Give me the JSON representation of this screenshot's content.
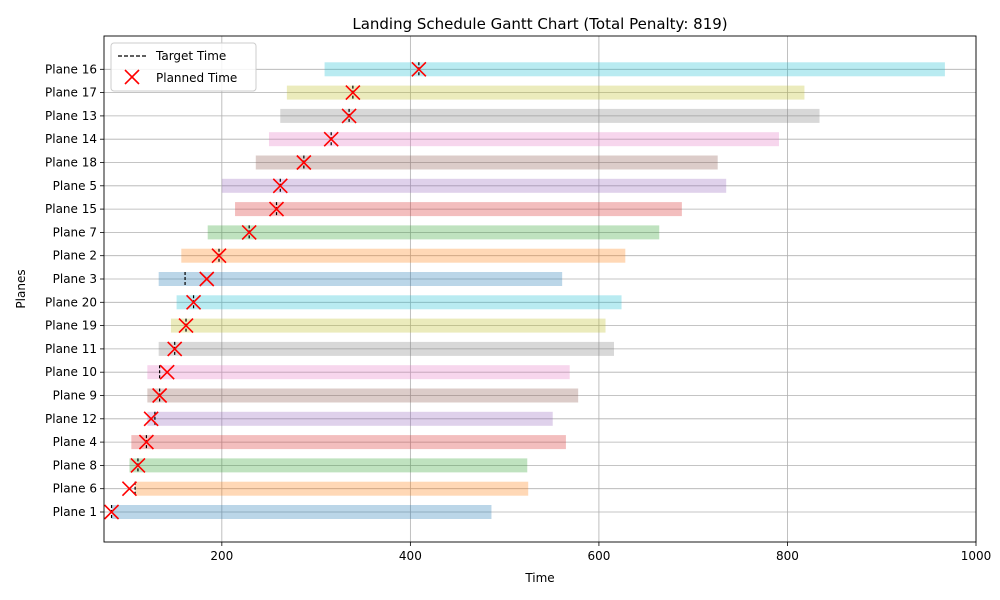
{
  "chart_data": {
    "type": "gantt",
    "title": "Landing Schedule Gantt Chart (Total Penalty: 819)",
    "xlabel": "Time",
    "ylabel": "Planes",
    "xlim": [
      75,
      1000
    ],
    "xticks": [
      200,
      400,
      600,
      800,
      1000
    ],
    "grid": true,
    "legend": {
      "placement": "top-left",
      "entries": [
        {
          "label": "Target Time",
          "marker": "dashed-line",
          "color": "#000000"
        },
        {
          "label": "Planned Time",
          "marker": "x",
          "color": "#ff0000"
        }
      ]
    },
    "planes": [
      {
        "name": "Plane 1",
        "start": 83,
        "end": 486,
        "target": 83,
        "planned": 83,
        "color": "#1f77b4"
      },
      {
        "name": "Plane 6",
        "start": 108,
        "end": 525,
        "target": 108,
        "planned": 102,
        "color": "#ff7f0e"
      },
      {
        "name": "Plane 8",
        "start": 102,
        "end": 524,
        "target": 111,
        "planned": 111,
        "color": "#2ca02c"
      },
      {
        "name": "Plane 4",
        "start": 104,
        "end": 565,
        "target": 120,
        "planned": 120,
        "color": "#d62728"
      },
      {
        "name": "Plane 12",
        "start": 121,
        "end": 551,
        "target": 129,
        "planned": 125,
        "color": "#9467bd"
      },
      {
        "name": "Plane 9",
        "start": 121,
        "end": 578,
        "target": 134,
        "planned": 134,
        "color": "#8c564b"
      },
      {
        "name": "Plane 10",
        "start": 121,
        "end": 569,
        "target": 134,
        "planned": 142,
        "color": "#e377c2"
      },
      {
        "name": "Plane 11",
        "start": 133,
        "end": 616,
        "target": 150,
        "planned": 150,
        "color": "#7f7f7f"
      },
      {
        "name": "Plane 19",
        "start": 146,
        "end": 607,
        "target": 162,
        "planned": 162,
        "color": "#bcbd22"
      },
      {
        "name": "Plane 20",
        "start": 152,
        "end": 624,
        "target": 170,
        "planned": 170,
        "color": "#17becf"
      },
      {
        "name": "Plane 3",
        "start": 133,
        "end": 561,
        "target": 161,
        "planned": 184,
        "color": "#1f77b4"
      },
      {
        "name": "Plane 2",
        "start": 157,
        "end": 628,
        "target": 197,
        "planned": 197,
        "color": "#ff7f0e"
      },
      {
        "name": "Plane 7",
        "start": 185,
        "end": 664,
        "target": 229,
        "planned": 229,
        "color": "#2ca02c"
      },
      {
        "name": "Plane 15",
        "start": 214,
        "end": 688,
        "target": 258,
        "planned": 258,
        "color": "#d62728"
      },
      {
        "name": "Plane 5",
        "start": 200,
        "end": 735,
        "target": 262,
        "planned": 262,
        "color": "#9467bd"
      },
      {
        "name": "Plane 18",
        "start": 236,
        "end": 726,
        "target": 287,
        "planned": 287,
        "color": "#8c564b"
      },
      {
        "name": "Plane 14",
        "start": 250,
        "end": 791,
        "target": 316,
        "planned": 316,
        "color": "#e377c2"
      },
      {
        "name": "Plane 13",
        "start": 262,
        "end": 834,
        "target": 335,
        "planned": 335,
        "color": "#7f7f7f"
      },
      {
        "name": "Plane 17",
        "start": 269,
        "end": 818,
        "target": 339,
        "planned": 339,
        "color": "#bcbd22"
      },
      {
        "name": "Plane 16",
        "start": 309,
        "end": 967,
        "target": 409,
        "planned": 409,
        "color": "#17becf"
      }
    ]
  }
}
